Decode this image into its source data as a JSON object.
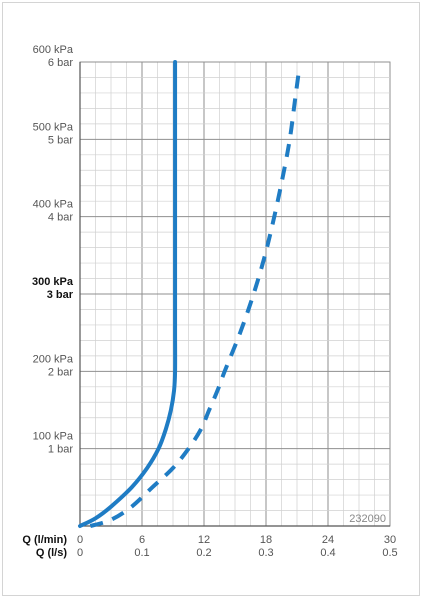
{
  "chart_data": {
    "type": "line",
    "x_axis_labels": [
      "Q (l/min)",
      "Q (l/s)"
    ],
    "x_ticks_lmin": [
      "0",
      "6",
      "12",
      "18",
      "24",
      "30"
    ],
    "x_ticks_ls": [
      "0",
      "0.1",
      "0.2",
      "0.3",
      "0.4",
      "0.5"
    ],
    "y_ticks": [
      {
        "kpa": "100 kPa",
        "bar": "1 bar",
        "bold": false
      },
      {
        "kpa": "200 kPa",
        "bar": "2 bar",
        "bold": false
      },
      {
        "kpa": "300 kPa",
        "bar": "3 bar",
        "bold": true
      },
      {
        "kpa": "400 kPa",
        "bar": "4 bar",
        "bold": false
      },
      {
        "kpa": "500 kPa",
        "bar": "5 bar",
        "bold": false
      },
      {
        "kpa": "600 kPa",
        "bar": "6 bar",
        "bold": false
      }
    ],
    "xlim": [
      0,
      30
    ],
    "ylim": [
      0,
      600
    ],
    "grid": true,
    "code": "232090",
    "series": [
      {
        "style": "solid",
        "color": "#1f7cc4",
        "points": [
          [
            0,
            0
          ],
          [
            1.5,
            10
          ],
          [
            3,
            25
          ],
          [
            5,
            50
          ],
          [
            6.5,
            75
          ],
          [
            7.6,
            100
          ],
          [
            8.3,
            125
          ],
          [
            8.8,
            150
          ],
          [
            9.1,
            175
          ],
          [
            9.2,
            200
          ],
          [
            9.2,
            250
          ],
          [
            9.2,
            300
          ],
          [
            9.2,
            400
          ],
          [
            9.2,
            500
          ],
          [
            9.2,
            600
          ]
        ]
      },
      {
        "style": "dashed",
        "color": "#1f7cc4",
        "points": [
          [
            1,
            0
          ],
          [
            3,
            8
          ],
          [
            5,
            25
          ],
          [
            7,
            50
          ],
          [
            9,
            75
          ],
          [
            10.5,
            100
          ],
          [
            11.7,
            125
          ],
          [
            12.5,
            150
          ],
          [
            13.3,
            175
          ],
          [
            14,
            200
          ],
          [
            15.5,
            250
          ],
          [
            16.8,
            300
          ],
          [
            17.9,
            350
          ],
          [
            18.8,
            400
          ],
          [
            19.6,
            450
          ],
          [
            20.3,
            500
          ],
          [
            20.8,
            550
          ],
          [
            21.2,
            590
          ]
        ]
      }
    ]
  }
}
